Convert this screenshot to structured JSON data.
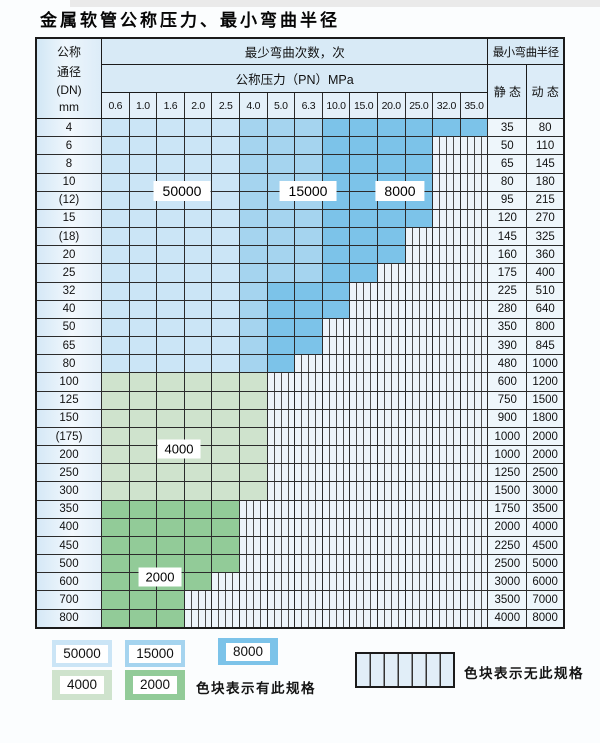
{
  "page": {
    "title": "金属软管公称压力、最小弯曲半径"
  },
  "table": {
    "header": {
      "dn_lines": [
        "公称",
        "通径",
        "(DN)",
        "mm"
      ],
      "bend_cycles_label": "最少弯曲次数，次",
      "pressure_label": "公称压力（PN）MPa",
      "radius_label": "最小弯曲半径",
      "static_label": "静 态",
      "dynamic_label": "动 态",
      "pressures": [
        "0.6",
        "1.0",
        "1.6",
        "2.0",
        "2.5",
        "4.0",
        "5.0",
        "6.3",
        "10.0",
        "15.0",
        "20.0",
        "25.0",
        "32.0",
        "35.0"
      ]
    },
    "cell_legend": {
      "L": "blue_50000",
      "M": "blue_15000",
      "D": "blue_8000",
      "g": "green_4000",
      "G": "green_2000",
      "x": "no_spec_hatched"
    },
    "rows": [
      {
        "dn": "4",
        "cells": "LLLLLMMMDDDDDD",
        "static": "35",
        "dynamic": "80"
      },
      {
        "dn": "6",
        "cells": "LLLLLMMMDDDDxx",
        "static": "50",
        "dynamic": "110"
      },
      {
        "dn": "8",
        "cells": "LLLLLMMMDDDDxx",
        "static": "65",
        "dynamic": "145"
      },
      {
        "dn": "10",
        "cells": "LLLLLMMMDDDDxx",
        "static": "80",
        "dynamic": "180"
      },
      {
        "dn": "(12)",
        "cells": "LLLLLMMMDDDDxx",
        "static": "95",
        "dynamic": "215"
      },
      {
        "dn": "15",
        "cells": "LLLLLMMMDDDDxx",
        "static": "120",
        "dynamic": "270"
      },
      {
        "dn": "(18)",
        "cells": "LLLLLMMMDDDxxx",
        "static": "145",
        "dynamic": "325"
      },
      {
        "dn": "20",
        "cells": "LLLLLMMMDDDxxx",
        "static": "160",
        "dynamic": "360"
      },
      {
        "dn": "25",
        "cells": "LLLLLMMMDDxxxx",
        "static": "175",
        "dynamic": "400"
      },
      {
        "dn": "32",
        "cells": "LLLLLMDDDxxxxx",
        "static": "225",
        "dynamic": "510"
      },
      {
        "dn": "40",
        "cells": "LLLLLMDDDxxxxx",
        "static": "280",
        "dynamic": "640"
      },
      {
        "dn": "50",
        "cells": "LLLLLMDDxxxxxx",
        "static": "350",
        "dynamic": "800"
      },
      {
        "dn": "65",
        "cells": "LLLLLMDDxxxxxx",
        "static": "390",
        "dynamic": "845"
      },
      {
        "dn": "80",
        "cells": "LLLLLMDxxxxxxx",
        "static": "480",
        "dynamic": "1000"
      },
      {
        "dn": "100",
        "cells": "ggggggxxxxxxxx",
        "static": "600",
        "dynamic": "1200"
      },
      {
        "dn": "125",
        "cells": "ggggggxxxxxxxx",
        "static": "750",
        "dynamic": "1500"
      },
      {
        "dn": "150",
        "cells": "ggggggxxxxxxxx",
        "static": "900",
        "dynamic": "1800"
      },
      {
        "dn": "(175)",
        "cells": "ggggggxxxxxxxx",
        "static": "1000",
        "dynamic": "2000"
      },
      {
        "dn": "200",
        "cells": "ggggggxxxxxxxx",
        "static": "1000",
        "dynamic": "2000"
      },
      {
        "dn": "250",
        "cells": "ggggggxxxxxxxx",
        "static": "1250",
        "dynamic": "2500"
      },
      {
        "dn": "300",
        "cells": "ggggggxxxxxxxx",
        "static": "1500",
        "dynamic": "3000"
      },
      {
        "dn": "350",
        "cells": "GGGGGxxxxxxxxx",
        "static": "1750",
        "dynamic": "3500"
      },
      {
        "dn": "400",
        "cells": "GGGGGxxxxxxxxx",
        "static": "2000",
        "dynamic": "4000"
      },
      {
        "dn": "450",
        "cells": "GGGGGxxxxxxxxx",
        "static": "2250",
        "dynamic": "4500"
      },
      {
        "dn": "500",
        "cells": "GGGGGxxxxxxxxx",
        "static": "2500",
        "dynamic": "5000"
      },
      {
        "dn": "600",
        "cells": "GGGGxxxxxxxxxx",
        "static": "3000",
        "dynamic": "6000"
      },
      {
        "dn": "700",
        "cells": "GGGxxxxxxxxxxx",
        "static": "3500",
        "dynamic": "7000"
      },
      {
        "dn": "800",
        "cells": "GGGxxxxxxxxxxx",
        "static": "4000",
        "dynamic": "8000"
      }
    ],
    "zone_labels": [
      "50000",
      "15000",
      "8000",
      "4000",
      "2000"
    ]
  },
  "legend": {
    "items": [
      {
        "label": "50000",
        "color": "#cbe5f6"
      },
      {
        "label": "15000",
        "color": "#a5d4ef"
      },
      {
        "label": "8000",
        "color": "#7cc3e9"
      },
      {
        "label": "4000",
        "color": "#cfe3cd"
      },
      {
        "label": "2000",
        "color": "#92cb98"
      }
    ],
    "available_text": "色块表示有此规格",
    "unavailable_text": "色块表示无此规格"
  },
  "colors": {
    "blue_50000": "#cbe5f6",
    "blue_15000": "#a5d4ef",
    "blue_8000": "#7cc3e9",
    "green_4000": "#cfe3cd",
    "green_2000": "#92cb98",
    "hatch_bg": "#edf4fa",
    "header_bg": "#d8eaf6",
    "grid_line": "#2b2b2b"
  }
}
